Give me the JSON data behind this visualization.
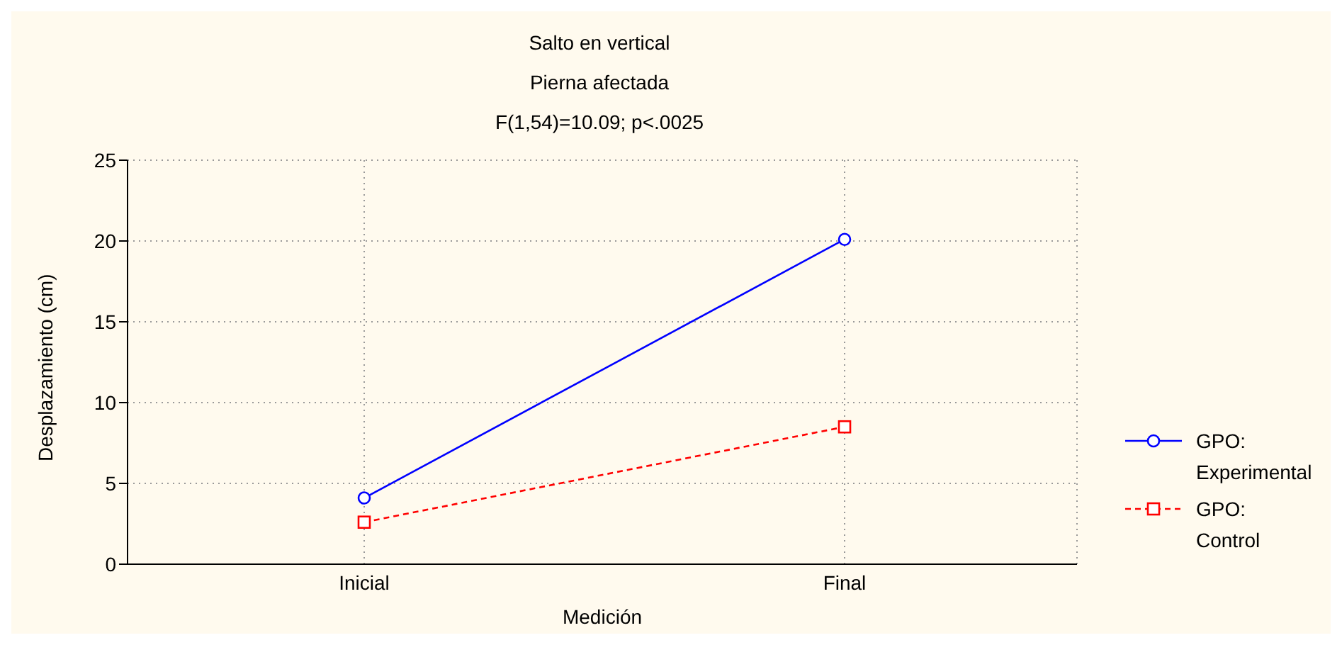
{
  "chart_data": {
    "type": "line",
    "title": "Salto en vertical",
    "subtitle": "Pierna afectada",
    "annotations": [
      "F(1,54)=10.09; p<.0025"
    ],
    "xlabel": "Medición",
    "ylabel": "Desplazamiento (cm)",
    "categories": [
      "Inicial",
      "Final"
    ],
    "series": [
      {
        "name": "GPO: Experimental",
        "color": "#0000ff",
        "values": [
          4.1,
          20.1
        ],
        "marker": "circle",
        "line_style": "solid"
      },
      {
        "name": "GPO: Control",
        "color": "#ff0000",
        "values": [
          2.6,
          8.5
        ],
        "marker": "square",
        "line_style": "dashed"
      }
    ],
    "ylim": [
      0,
      25
    ],
    "yticks": [
      0,
      5,
      10,
      15,
      20,
      25
    ],
    "grid": true,
    "legend": "right"
  }
}
